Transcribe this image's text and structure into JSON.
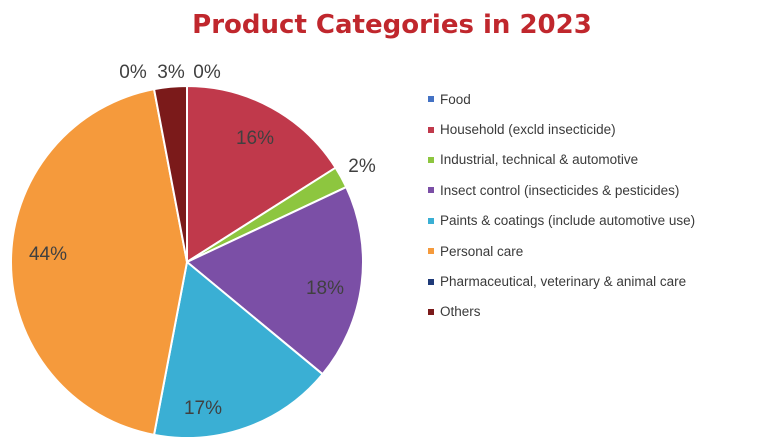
{
  "chart_data": {
    "type": "pie",
    "title": "Product Categories in 2023",
    "series": [
      {
        "name": "Food",
        "value": 0,
        "label": "0%",
        "color": "#4472c4"
      },
      {
        "name": "Household (excld insecticide)",
        "value": 16,
        "label": "16%",
        "color": "#c0394b"
      },
      {
        "name": "Industrial, technical & automotive",
        "value": 2,
        "label": "2%",
        "color": "#8dc63f"
      },
      {
        "name": "Insect control (insecticides & pesticides)",
        "value": 18,
        "label": "18%",
        "color": "#7b4fa6"
      },
      {
        "name": "Paints & coatings (include automotive use)",
        "value": 17,
        "label": "17%",
        "color": "#3aafd4"
      },
      {
        "name": "Personal care",
        "value": 44,
        "label": "44%",
        "color": "#f59a3c"
      },
      {
        "name": "Pharmaceutical, veterinary & animal care",
        "value": 0,
        "label": "0%",
        "color": "#1f3a78"
      },
      {
        "name": "Others",
        "value": 3,
        "label": "3%",
        "color": "#7b1a1a"
      }
    ],
    "legend_position": "right",
    "start_angle_deg": 0,
    "direction": "clockwise"
  }
}
